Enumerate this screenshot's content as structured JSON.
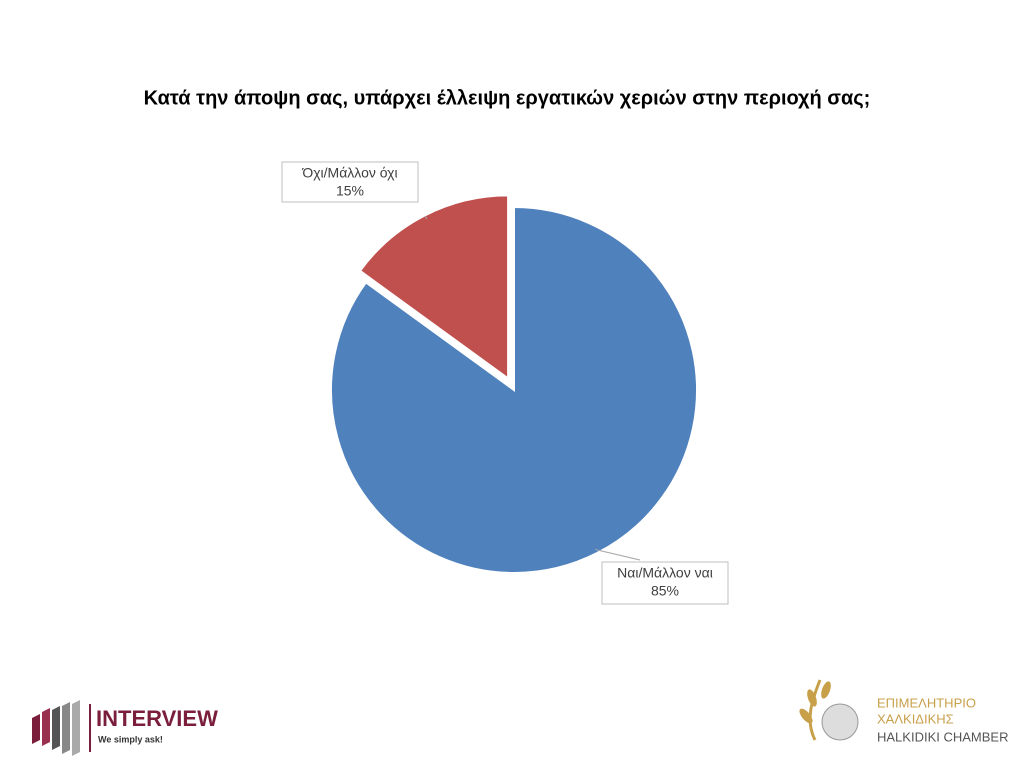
{
  "chart_data": {
    "type": "pie",
    "title": "Κατά την άποψη σας, υπάρχει έλλειψη εργατικών χεριών στην περιοχή σας;",
    "categories": [
      "Ναι/Μάλλον ναι",
      "Όχι/Μάλλον όχι"
    ],
    "values": [
      85,
      15
    ],
    "value_labels": [
      "85%",
      "15%"
    ],
    "colors": [
      "#4f81bd",
      "#c0504d"
    ]
  },
  "footer": {
    "left_logo": {
      "name": "INTERVIEW",
      "tagline": "We simply ask!"
    },
    "right_logo": {
      "line1": "ΕΠΙΜΕΛΗΤΗΡΙΟ",
      "line2": "ΧΑΛΚΙΔΙΚΗΣ",
      "line3": "HALKIDIKI CHAMBER"
    }
  }
}
